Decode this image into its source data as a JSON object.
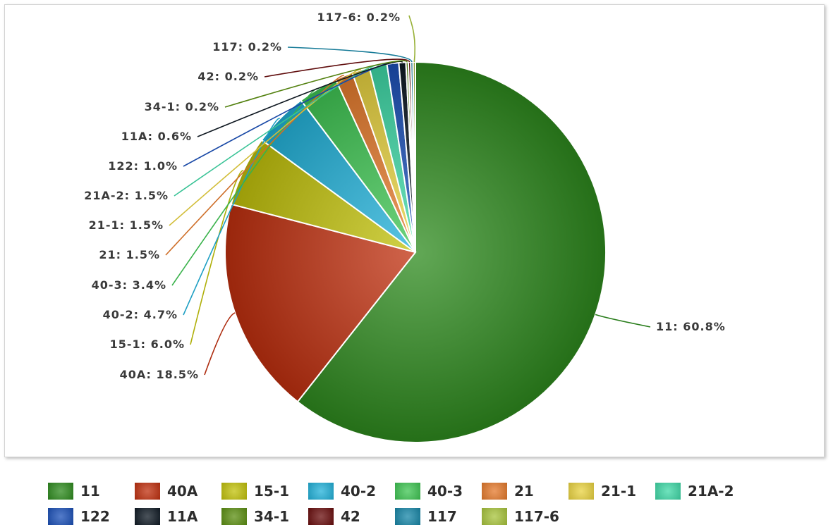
{
  "chart_data": {
    "type": "pie",
    "title": "",
    "legend_position": "bottom",
    "slices": [
      {
        "name": "11",
        "value": 60.8,
        "label": "11: 60.8%",
        "color": "#2e8b1e"
      },
      {
        "name": "40A",
        "value": 18.5,
        "label": "40A: 18.5%",
        "color": "#c0300f"
      },
      {
        "name": "15-1",
        "value": 6.0,
        "label": "15-1: 6.0%",
        "color": "#c2c20a"
      },
      {
        "name": "40-2",
        "value": 4.7,
        "label": "40-2: 4.7%",
        "color": "#21b1d9"
      },
      {
        "name": "40-3",
        "value": 3.4,
        "label": "40-3: 3.4%",
        "color": "#3fc653"
      },
      {
        "name": "21",
        "value": 1.5,
        "label": "21: 1.5%",
        "color": "#e57a2c"
      },
      {
        "name": "21-1",
        "value": 1.5,
        "label": "21-1: 1.5%",
        "color": "#e9d340"
      },
      {
        "name": "21A-2",
        "value": 1.5,
        "label": "21A-2: 1.5%",
        "color": "#3fd9a7"
      },
      {
        "name": "122",
        "value": 1.0,
        "label": "122: 1.0%",
        "color": "#1b50b8"
      },
      {
        "name": "11A",
        "value": 0.6,
        "label": "11A: 0.6%",
        "color": "#0f1a24"
      },
      {
        "name": "34-1",
        "value": 0.2,
        "label": "34-1: 0.2%",
        "color": "#5c8f12"
      },
      {
        "name": "42",
        "value": 0.2,
        "label": "42: 0.2%",
        "color": "#6a0d0d"
      },
      {
        "name": "117",
        "value": 0.2,
        "label": "117: 0.2%",
        "color": "#1787a8"
      },
      {
        "name": "117-6",
        "value": 0.2,
        "label": "117-6: 0.2%",
        "color": "#a8c43c"
      }
    ]
  }
}
